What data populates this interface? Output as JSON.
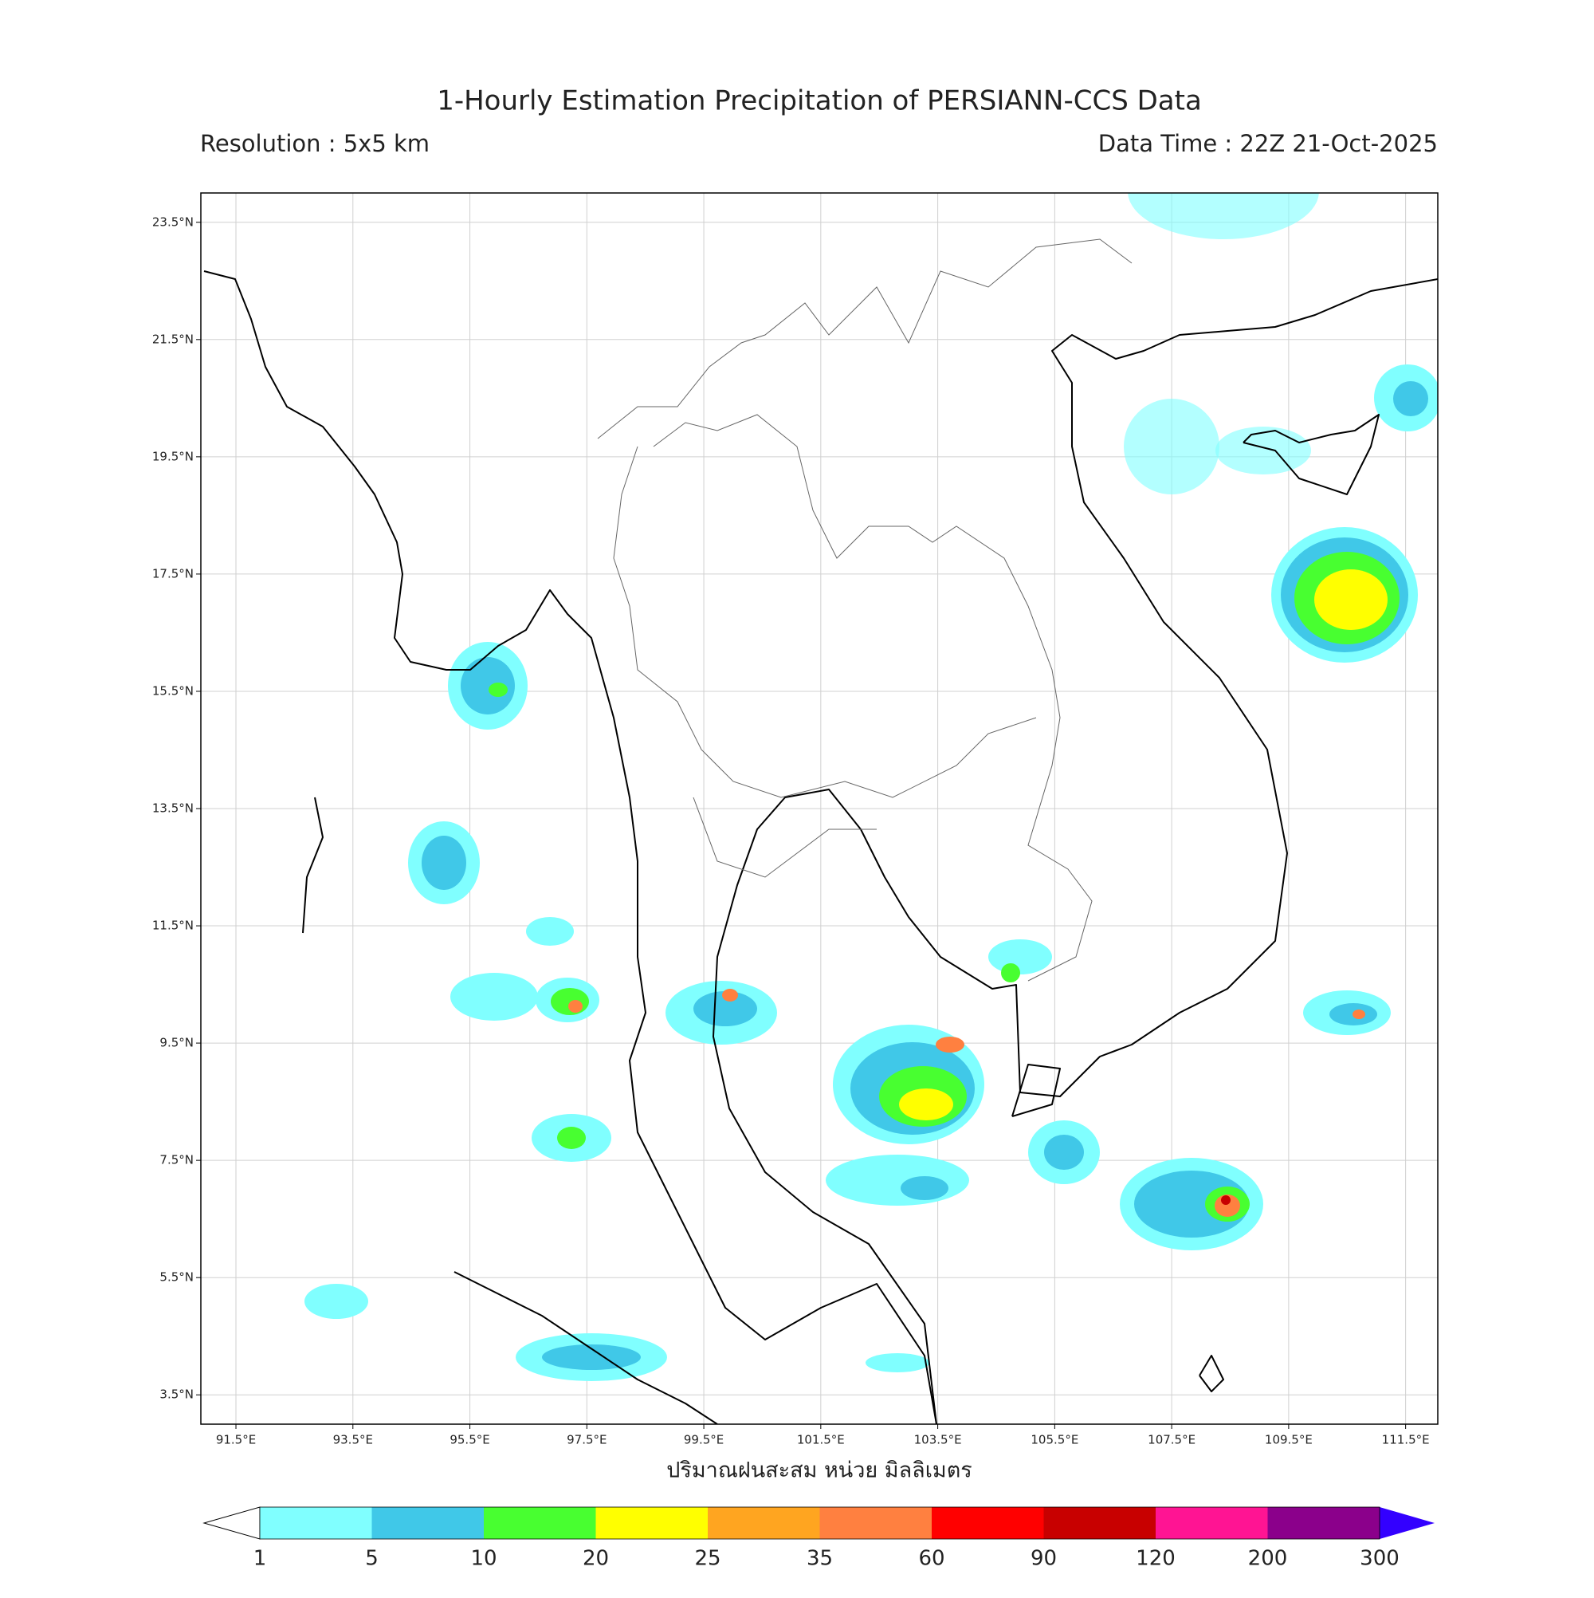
{
  "title": "1-Hourly Estimation Precipitation of PERSIANN-CCS Data",
  "resolution": "Resolution : 5x5 km",
  "data_time": "Data Time : 22Z 21-Oct-2025",
  "map": {
    "xlim": [
      90.9,
      112.05
    ],
    "ylim": [
      3.0,
      24.0
    ],
    "grid": true,
    "xticks": [
      {
        "value": 91.5,
        "label": "91.5°E"
      },
      {
        "value": 93.5,
        "label": "93.5°E"
      },
      {
        "value": 95.5,
        "label": "95.5°E"
      },
      {
        "value": 97.5,
        "label": "97.5°E"
      },
      {
        "value": 99.5,
        "label": "99.5°E"
      },
      {
        "value": 101.5,
        "label": "101.5°E"
      },
      {
        "value": 103.5,
        "label": "103.5°E"
      },
      {
        "value": 105.5,
        "label": "105.5°E"
      },
      {
        "value": 107.5,
        "label": "107.5°E"
      },
      {
        "value": 109.5,
        "label": "109.5°E"
      },
      {
        "value": 111.5,
        "label": "111.5°E"
      }
    ],
    "yticks": [
      {
        "value": 3.5,
        "label": "3.5°N"
      },
      {
        "value": 5.5,
        "label": "5.5°N"
      },
      {
        "value": 7.5,
        "label": "7.5°N"
      },
      {
        "value": 9.5,
        "label": "9.5°N"
      },
      {
        "value": 11.5,
        "label": "11.5°N"
      },
      {
        "value": 13.5,
        "label": "13.5°N"
      },
      {
        "value": 15.5,
        "label": "15.5°N"
      },
      {
        "value": 17.5,
        "label": "17.5°N"
      },
      {
        "value": 19.5,
        "label": "19.5°N"
      },
      {
        "value": 21.5,
        "label": "21.5°N"
      },
      {
        "value": 23.5,
        "label": "23.5°N"
      }
    ],
    "xlabel": "ปริมาณฝนสะสม หน่วย มิลลิเมตร"
  },
  "colorbar": {
    "levels": [
      1,
      5,
      10,
      20,
      25,
      35,
      60,
      90,
      120,
      200,
      300
    ],
    "colors": [
      "#80ffff",
      "#40c8e8",
      "#48ff30",
      "#ffff00",
      "#ffa520",
      "#ff8040",
      "#ff0000",
      "#c80000",
      "#ff1493",
      "#8b008b"
    ],
    "under_color": "#ffffff",
    "over_color": "#3300ff"
  }
}
